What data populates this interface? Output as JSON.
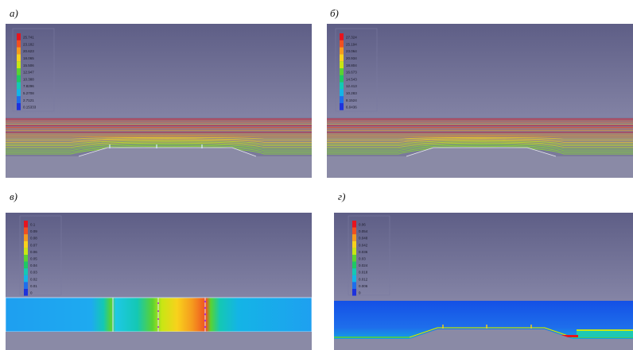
{
  "panels": [
    {
      "label": "а)",
      "legend": {
        "values": [
          "25.741",
          "23.182",
          "20.623",
          "18.065",
          "15.506",
          "12.947",
          "10.388",
          "7.8296",
          "5.2708",
          "2.7121",
          "0.15333"
        ],
        "colors": [
          "#e6141e",
          "#f05020",
          "#f59a1e",
          "#f8d21c",
          "#c8e614",
          "#5ad232",
          "#1ec864",
          "#14c8b4",
          "#14b4e6",
          "#1e6eeb",
          "#1e32dc"
        ]
      }
    },
    {
      "label": "б)",
      "legend": {
        "values": [
          "27.324",
          "25.194",
          "23.064",
          "20.934",
          "18.804",
          "16.673",
          "14.543",
          "12.413",
          "10.283",
          "8.1524",
          "6.0436"
        ],
        "colors": [
          "#e6141e",
          "#f05020",
          "#f59a1e",
          "#f8d21c",
          "#c8e614",
          "#5ad232",
          "#1ec864",
          "#14c8b4",
          "#14b4e6",
          "#1e6eeb",
          "#1e32dc"
        ]
      }
    },
    {
      "label": "в)",
      "legend": {
        "values": [
          "0.1",
          "0.09",
          "0.08",
          "0.07",
          "0.06",
          "0.05",
          "0.04",
          "0.03",
          "0.02",
          "0.01",
          "0"
        ],
        "colors": [
          "#e6141e",
          "#f05020",
          "#f59a1e",
          "#f8d21c",
          "#c8e614",
          "#5ad232",
          "#1ec864",
          "#14c8b4",
          "#14b4e6",
          "#1e6eeb",
          "#1e32dc"
        ]
      }
    },
    {
      "label": "г)",
      "legend": {
        "values": [
          "0.06",
          "0.054",
          "0.048",
          "0.042",
          "0.036",
          "0.03",
          "0.024",
          "0.018",
          "0.012",
          "0.006",
          "0"
        ],
        "colors": [
          "#e6141e",
          "#f05020",
          "#f59a1e",
          "#f8d21c",
          "#c8e614",
          "#5ad232",
          "#1ec864",
          "#14c8b4",
          "#14b4e6",
          "#1e6eeb",
          "#1e32dc"
        ]
      }
    }
  ]
}
